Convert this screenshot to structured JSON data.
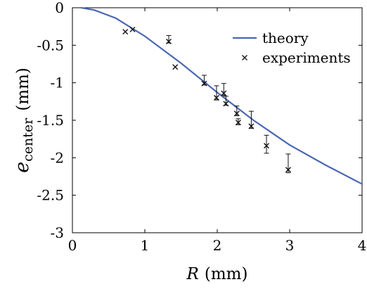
{
  "chart_data": {
    "type": "scatter",
    "xlabel": "R (mm)",
    "ylabel": "e_center (mm)",
    "xlim": [
      0,
      4
    ],
    "ylim": [
      -3,
      0
    ],
    "x_ticks": [
      0,
      1,
      2,
      3,
      4
    ],
    "x_tick_labels": [
      "0",
      "1",
      "2",
      "3",
      "4"
    ],
    "y_ticks": [
      0,
      -0.5,
      -1,
      -1.5,
      -2,
      -2.5,
      -3
    ],
    "y_tick_labels": [
      "0",
      "-0.5",
      "-1",
      "-1.5",
      "-2",
      "-2.5",
      "-3"
    ],
    "grid": false,
    "legend_position": "top-right",
    "series": [
      {
        "name": "theory",
        "kind": "line",
        "color": "#4a67b3",
        "x": [
          0.12,
          0.3,
          0.6,
          1.0,
          1.5,
          2.0,
          2.5,
          3.0,
          3.5,
          4.0
        ],
        "y": [
          0.0,
          -0.03,
          -0.14,
          -0.38,
          -0.74,
          -1.13,
          -1.5,
          -1.83,
          -2.1,
          -2.35
        ]
      },
      {
        "name": "experiments",
        "kind": "scatter",
        "color": "#111111",
        "points": [
          {
            "x": 0.73,
            "y": -0.32
          },
          {
            "x": 0.83,
            "y": -0.29
          },
          {
            "x": 1.33,
            "y": -0.45,
            "yerr_up": 0.08,
            "yerr_down": 0.02
          },
          {
            "x": 1.42,
            "y": -0.79
          },
          {
            "x": 1.82,
            "y": -1.01,
            "yerr_up": 0.11,
            "yerr_down": 0.02
          },
          {
            "x": 1.99,
            "y": -1.2,
            "yerr_up": 0.16,
            "yerr_down": 0.03
          },
          {
            "x": 2.09,
            "y": -1.14,
            "yerr_up": 0.13,
            "yerr_down": 0.03
          },
          {
            "x": 2.12,
            "y": -1.28,
            "yerr_up": 0.1,
            "yerr_down": 0.02
          },
          {
            "x": 2.27,
            "y": -1.41,
            "yerr_up": 0.1,
            "yerr_down": 0.03
          },
          {
            "x": 2.29,
            "y": -1.53,
            "yerr_up": 0.05,
            "yerr_down": 0.03
          },
          {
            "x": 2.47,
            "y": -1.58,
            "yerr_up": 0.2,
            "yerr_down": 0.03
          },
          {
            "x": 2.68,
            "y": -1.84,
            "yerr_up": 0.14,
            "yerr_down": 0.1
          },
          {
            "x": 2.98,
            "y": -2.16,
            "yerr_up": 0.21,
            "yerr_down": 0.04
          }
        ]
      }
    ]
  },
  "axis_text": {
    "x_var": "R",
    "x_unit": "(mm)",
    "y_var": "e",
    "y_sub": "center",
    "y_unit": "(mm)"
  }
}
